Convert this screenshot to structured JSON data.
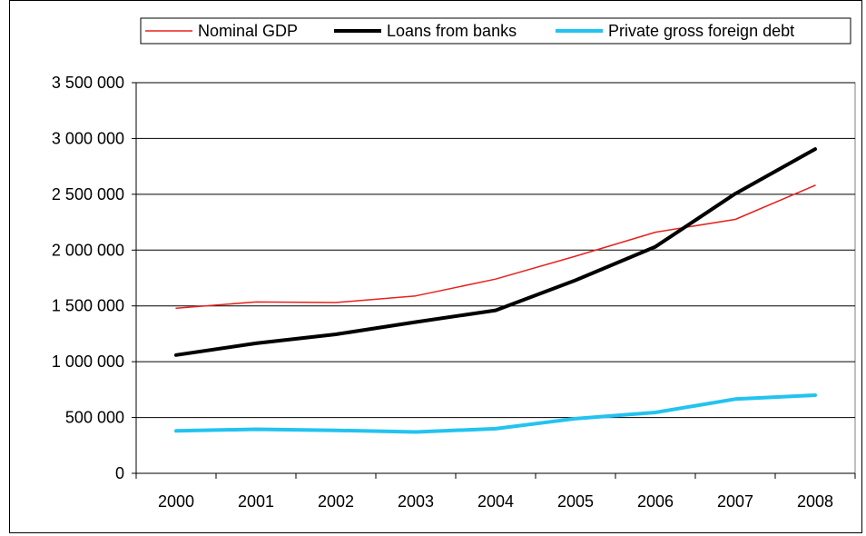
{
  "chart_data": {
    "type": "line",
    "categories": [
      "2000",
      "2001",
      "2002",
      "2003",
      "2004",
      "2005",
      "2006",
      "2007",
      "2008"
    ],
    "series": [
      {
        "name": "Nominal GDP",
        "color": "#e8211c",
        "values": [
          1480000,
          1535000,
          1530000,
          1590000,
          1740000,
          1945000,
          2160000,
          2275000,
          2580000
        ]
      },
      {
        "name": "Loans from banks",
        "color": "#000000",
        "values": [
          1060000,
          1165000,
          1245000,
          1355000,
          1460000,
          1730000,
          2030000,
          2505000,
          2905000
        ]
      },
      {
        "name": "Private gross foreign debt",
        "color": "#22c3f0",
        "values": [
          380000,
          395000,
          385000,
          370000,
          400000,
          490000,
          545000,
          665000,
          700000
        ]
      }
    ],
    "y_ticks": [
      "0",
      "500 000",
      "1 000 000",
      "1 500 000",
      "2 000 000",
      "2 500 000",
      "3 000 000",
      "3 500 000"
    ],
    "ylim": [
      0,
      3500000
    ],
    "grid": true,
    "legend_position": "top"
  }
}
